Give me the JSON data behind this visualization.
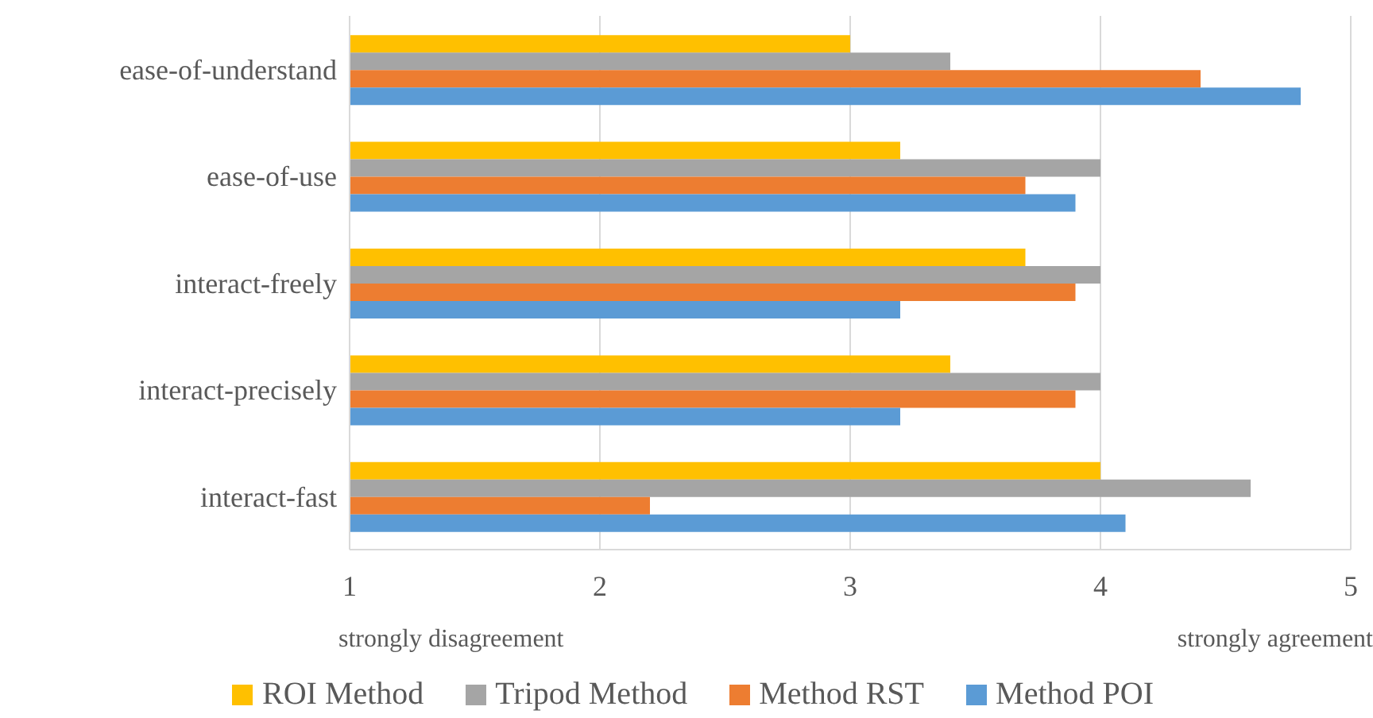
{
  "chart_data": {
    "type": "bar",
    "orientation": "horizontal",
    "categories": [
      "ease-of-understand",
      "ease-of-use",
      "interact-freely",
      "interact-precisely",
      "interact-fast"
    ],
    "series": [
      {
        "name": "ROI Method",
        "color": "#ffc000",
        "values": [
          3.0,
          3.2,
          3.7,
          3.4,
          4.0
        ]
      },
      {
        "name": "Tripod Method",
        "color": "#a5a5a5",
        "values": [
          3.4,
          4.0,
          4.0,
          4.0,
          4.6
        ]
      },
      {
        "name": "Method RST",
        "color": "#ed7d31",
        "values": [
          4.4,
          3.7,
          3.9,
          3.9,
          2.2
        ]
      },
      {
        "name": "Method POI",
        "color": "#5b9bd5",
        "values": [
          4.8,
          3.9,
          3.2,
          3.2,
          4.1
        ]
      }
    ],
    "xlim": [
      1,
      5
    ],
    "xticks": [
      1,
      2,
      3,
      4,
      5
    ],
    "grid": "x",
    "legend": "bottom",
    "annotations": [
      "strongly disagreement",
      "strongly agreement"
    ]
  }
}
